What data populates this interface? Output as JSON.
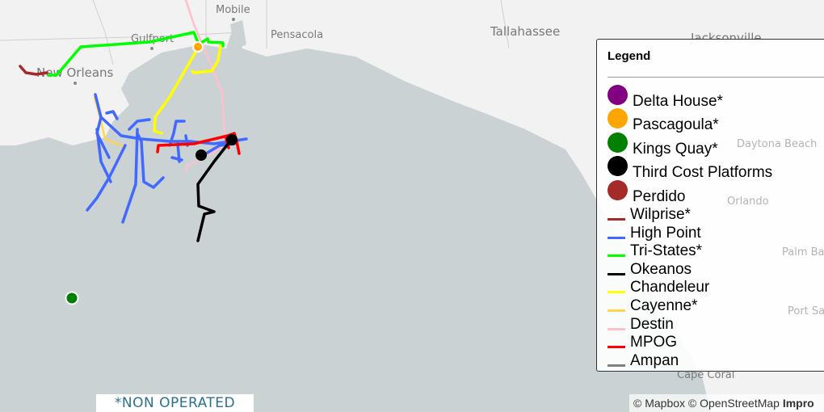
{
  "map": {
    "cities": [
      "Mobile",
      "Gulfport",
      "Pensacola",
      "Tallahassee",
      "Jacksonville",
      "New Orleans",
      "Daytona Beach",
      "Orlando",
      "Palm Ba",
      "Port Sa",
      "Cape Coral"
    ],
    "colors": {
      "land": "#f2f2f2",
      "water": "#cbd2d3"
    }
  },
  "legend": {
    "title": "Legend",
    "points": [
      {
        "label": "Delta House*",
        "color": "#800080"
      },
      {
        "label": "Pascagoula*",
        "color": "#ffa500"
      },
      {
        "label": "Kings Quay*",
        "color": "#008000"
      },
      {
        "label": "Third Cost Platforms",
        "color": "#000000"
      },
      {
        "label": "Perdido",
        "color": "#a52a2a"
      }
    ],
    "lines": [
      {
        "label": "Wilprise*",
        "color": "#a52a2a"
      },
      {
        "label": "High Point",
        "color": "#4169ff"
      },
      {
        "label": "Tri-States*",
        "color": "#00ff00"
      },
      {
        "label": "Okeanos",
        "color": "#000000"
      },
      {
        "label": "Chandeleur",
        "color": "#ffff00"
      },
      {
        "label": "Cayenne*",
        "color": "#ffd54f"
      },
      {
        "label": "Destin",
        "color": "#ffc0cb"
      },
      {
        "label": "MPOG",
        "color": "#ff0000"
      },
      {
        "label": "Ampan",
        "color": "#808080"
      }
    ]
  },
  "note": "*NON OPERATED",
  "attribution": {
    "mapbox": "© Mapbox",
    "osm": "© OpenStreetMap",
    "improve": "Impro"
  }
}
